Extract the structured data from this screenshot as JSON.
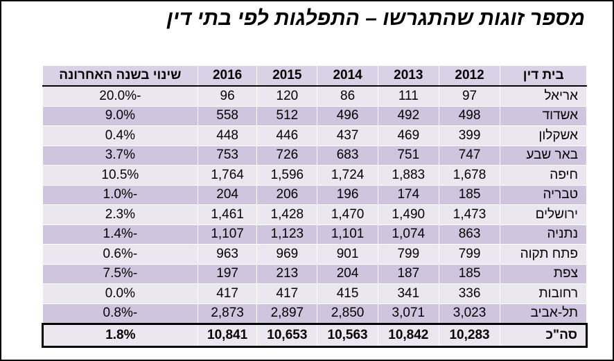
{
  "title": "מספר זוגות שהתגרשו – התפלגות לפי בתי דין",
  "table": {
    "header": [
      "בית דין",
      "2012",
      "2013",
      "2014",
      "2015",
      "2016",
      "שינוי בשנה האחרונה"
    ],
    "rows": [
      [
        "אריאל",
        "97",
        "111",
        "86",
        "120",
        "96",
        "-20.0%"
      ],
      [
        "אשדוד",
        "498",
        "492",
        "496",
        "512",
        "558",
        "9.0%"
      ],
      [
        "אשקלון",
        "399",
        "469",
        "437",
        "446",
        "448",
        "0.4%"
      ],
      [
        "באר שבע",
        "747",
        "751",
        "683",
        "726",
        "753",
        "3.7%"
      ],
      [
        "חיפה",
        "1,678",
        "1,883",
        "1,724",
        "1,596",
        "1,764",
        "10.5%"
      ],
      [
        "טבריה",
        "185",
        "174",
        "196",
        "206",
        "204",
        "-1.0%"
      ],
      [
        "ירושלים",
        "1,473",
        "1,490",
        "1,470",
        "1,428",
        "1,461",
        "2.3%"
      ],
      [
        "נתניה",
        "863",
        "1,074",
        "1,101",
        "1,123",
        "1,107",
        "-1.4%"
      ],
      [
        "פתח תקוה",
        "799",
        "799",
        "901",
        "969",
        "963",
        "-0.6%"
      ],
      [
        "צפת",
        "185",
        "187",
        "204",
        "213",
        "197",
        "-7.5%"
      ],
      [
        "רחובות",
        "336",
        "341",
        "415",
        "417",
        "417",
        "0.0%"
      ],
      [
        "תל-אביב",
        "3,023",
        "3,071",
        "2,850",
        "2,897",
        "2,873",
        "-0.8%"
      ]
    ],
    "total": [
      "סה\"כ",
      "10,283",
      "10,842",
      "10,563",
      "10,653",
      "10,841",
      "1.8%"
    ]
  }
}
